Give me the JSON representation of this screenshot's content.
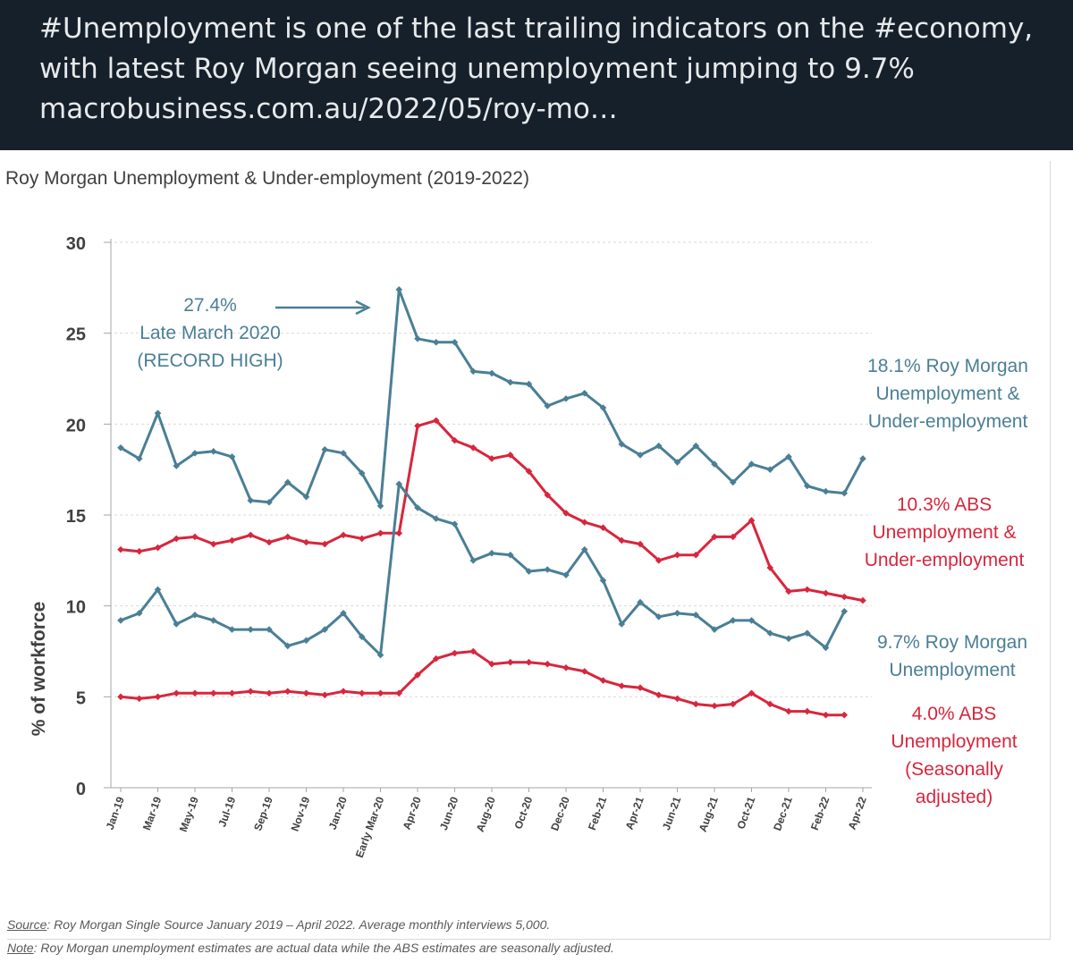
{
  "tweet": {
    "lines": [
      "#Unemployment is one of the last trailing indicators on the #economy,",
      "with latest Roy Morgan seeing unemployment jumping to 9.7%",
      "macrobusiness.com.au/2022/05/roy-mo…"
    ]
  },
  "footnotes": {
    "source_label": "Source",
    "source_text": ": Roy Morgan Single Source January 2019 – April 2022. Average monthly interviews 5,000.",
    "note_label": "Note",
    "note_text": ": Roy Morgan unemployment estimates are actual data while the ABS estimates are seasonally adjusted."
  },
  "colors": {
    "roy_morgan": "#4a7f95",
    "abs": "#d7263d",
    "axis": "#404040",
    "grid": "#d9d9d9"
  },
  "chart_data": {
    "type": "line",
    "title": "Roy Morgan Unemployment & Under-employment (2019-2022)",
    "ylabel": "% of workforce",
    "xlabel": "",
    "ylim": [
      0,
      30
    ],
    "yticks": [
      0,
      5,
      10,
      15,
      20,
      25,
      30
    ],
    "grid": "horizontal dashed",
    "x_tick_labels": [
      "Jan-19",
      "Mar-19",
      "May-19",
      "Jul-19",
      "Sep-19",
      "Nov-19",
      "Jan-20",
      "Early Mar-20",
      "Apr-20",
      "Jun-20",
      "Aug-20",
      "Oct-20",
      "Dec-20",
      "Feb-21",
      "Apr-21",
      "Jun-21",
      "Aug-21",
      "Oct-21",
      "Dec-21",
      "Feb-22",
      "Apr-22"
    ],
    "series": [
      {
        "key": "rm_under",
        "color": "#4a7f95",
        "values": [
          18.7,
          18.1,
          20.6,
          17.7,
          18.4,
          18.5,
          18.2,
          15.8,
          15.7,
          16.8,
          16.0,
          18.6,
          18.4,
          17.3,
          15.5,
          27.4,
          24.7,
          24.5,
          24.5,
          22.9,
          22.8,
          22.3,
          22.2,
          21.0,
          21.4,
          21.7,
          20.9,
          18.9,
          18.3,
          18.8,
          17.9,
          18.8,
          17.8,
          16.8,
          17.8,
          17.5,
          18.2,
          16.6,
          16.3,
          16.2,
          18.1
        ]
      },
      {
        "key": "abs_under",
        "color": "#d7263d",
        "values": [
          13.1,
          13.0,
          13.2,
          13.7,
          13.8,
          13.4,
          13.6,
          13.9,
          13.5,
          13.8,
          13.5,
          13.4,
          13.9,
          13.7,
          14.0,
          14.0,
          19.9,
          20.2,
          19.1,
          18.7,
          18.1,
          18.3,
          17.4,
          16.1,
          15.1,
          14.6,
          14.3,
          13.6,
          13.4,
          12.5,
          12.8,
          12.8,
          13.8,
          13.8,
          14.7,
          12.1,
          10.8,
          10.9,
          10.7,
          10.5,
          10.3
        ]
      },
      {
        "key": "rm_unemp",
        "color": "#4a7f95",
        "values": [
          9.2,
          9.6,
          10.9,
          9.0,
          9.5,
          9.2,
          8.7,
          8.7,
          8.7,
          7.8,
          8.1,
          8.7,
          9.6,
          8.3,
          7.3,
          16.7,
          15.4,
          14.8,
          14.5,
          12.5,
          12.9,
          12.8,
          11.9,
          12.0,
          11.7,
          13.1,
          11.4,
          9.0,
          10.2,
          9.4,
          9.6,
          9.5,
          8.7,
          9.2,
          9.2,
          8.5,
          8.2,
          8.5,
          7.7,
          9.7
        ]
      },
      {
        "key": "abs_unemp",
        "color": "#d7263d",
        "values": [
          5.0,
          4.9,
          5.0,
          5.2,
          5.2,
          5.2,
          5.2,
          5.3,
          5.2,
          5.3,
          5.2,
          5.1,
          5.3,
          5.2,
          5.2,
          5.2,
          6.2,
          7.1,
          7.4,
          7.5,
          6.8,
          6.9,
          6.9,
          6.8,
          6.6,
          6.4,
          5.9,
          5.6,
          5.5,
          5.1,
          4.9,
          4.6,
          4.5,
          4.6,
          5.2,
          4.6,
          4.2,
          4.2,
          4.0,
          4.0
        ]
      }
    ],
    "annotations": {
      "peak": [
        "27.4%",
        "Late March 2020",
        "(RECORD HIGH)"
      ],
      "rm_under_label": [
        "18.1% Roy Morgan",
        "Unemployment &",
        "Under-employment"
      ],
      "abs_under_label": [
        "10.3% ABS",
        "Unemployment &",
        "Under-employment"
      ],
      "rm_unemp_label": [
        "9.7% Roy Morgan",
        "Unemployment"
      ],
      "abs_unemp_label": [
        "4.0% ABS",
        "Unemployment",
        "(Seasonally",
        "adjusted)"
      ]
    }
  }
}
